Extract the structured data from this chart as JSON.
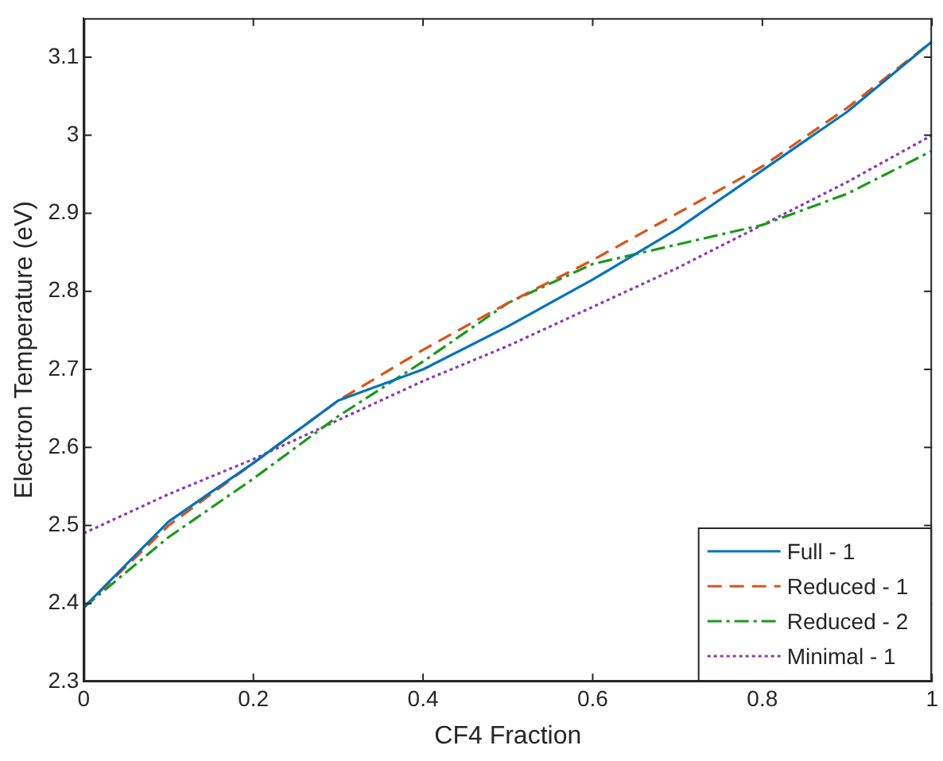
{
  "chart_data": {
    "type": "line",
    "xlabel": "CF4 Fraction",
    "ylabel": "Electron Temperature (eV)",
    "x": [
      0,
      0.1,
      0.2,
      0.3,
      0.4,
      0.5,
      0.6,
      0.7,
      0.8,
      0.9,
      1
    ],
    "series": [
      {
        "name": "Full - 1",
        "color": "#0072bd",
        "line_style": "solid",
        "values": [
          2.395,
          2.505,
          2.58,
          2.66,
          2.7,
          2.755,
          2.815,
          2.88,
          2.955,
          3.03,
          3.12
        ]
      },
      {
        "name": "Reduced - 1",
        "color": "#d95319",
        "line_style": "dashed",
        "values": [
          2.395,
          2.5,
          2.58,
          2.66,
          2.725,
          2.785,
          2.84,
          2.9,
          2.96,
          3.035,
          3.12
        ]
      },
      {
        "name": "Reduced - 2",
        "color": "#1a9a1a",
        "line_style": "dashdot",
        "values": [
          2.395,
          2.485,
          2.56,
          2.64,
          2.71,
          2.785,
          2.835,
          2.86,
          2.885,
          2.925,
          2.98
        ]
      },
      {
        "name": "Minimal - 1",
        "color": "#8e3ab0",
        "line_style": "dotted",
        "values": [
          2.49,
          2.54,
          2.585,
          2.635,
          2.685,
          2.73,
          2.78,
          2.83,
          2.885,
          2.94,
          3.0
        ]
      }
    ],
    "xlim": [
      0,
      1
    ],
    "xticks": [
      0,
      0.2,
      0.4,
      0.6,
      0.8,
      1
    ],
    "ylim": [
      2.3,
      3.15
    ],
    "yticks": [
      2.3,
      2.4,
      2.5,
      2.6,
      2.7,
      2.8,
      2.9,
      3,
      3.1
    ],
    "grid": false,
    "legend": "bottom right",
    "marker": "none"
  }
}
